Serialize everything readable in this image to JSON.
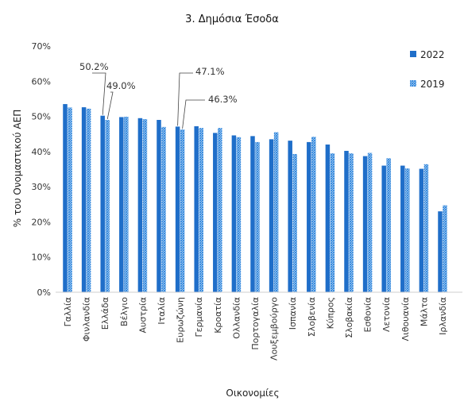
{
  "chart_data": {
    "type": "bar",
    "title": "3. Δημόσια Έσοδα",
    "xlabel": "Οικονομίες",
    "ylabel": "% του Ονομαστικού ΑΕΠ",
    "ylim": [
      0,
      70
    ],
    "yticks": [
      "0%",
      "10%",
      "20%",
      "30%",
      "40%",
      "50%",
      "60%",
      "70%"
    ],
    "grid": false,
    "legend_position": "top-right",
    "categories": [
      "Γαλλία",
      "Φινλανδία",
      "Ελλάδα",
      "Βέλγιο",
      "Αυστρία",
      "Ιταλία",
      "Ευρωζώνη",
      "Γερμανία",
      "Κροατία",
      "Ολλανδία",
      "Πορτογαλία",
      "Λουξεμβούργο",
      "Ισπανία",
      "Σλοβενία",
      "Κύπρος",
      "Σλοβακία",
      "Εσθονία",
      "Λετονία",
      "Λιθουανία",
      "Μάλτα",
      "Ιρλανδία"
    ],
    "series": [
      {
        "name": "2022",
        "color": "#1f6ec9",
        "pattern": "solid",
        "values": [
          53.5,
          52.6,
          50.2,
          49.8,
          49.5,
          49.0,
          47.1,
          47.2,
          45.3,
          44.6,
          44.4,
          43.5,
          43.1,
          42.7,
          42.0,
          40.2,
          38.7,
          36.0,
          36.0,
          35.1,
          23.0
        ]
      },
      {
        "name": "2019",
        "color": "#2f86dd",
        "pattern": "hatched",
        "values": [
          52.5,
          52.2,
          49.0,
          49.9,
          49.2,
          47.0,
          46.3,
          46.7,
          46.7,
          44.1,
          42.7,
          45.5,
          39.3,
          44.2,
          39.5,
          39.5,
          39.6,
          38.1,
          35.2,
          36.4,
          24.7
        ]
      }
    ],
    "annotations": [
      {
        "text": "50.2%",
        "category": "Ελλάδα",
        "series": "2022",
        "value": 50.2
      },
      {
        "text": "49.0%",
        "category": "Ελλάδα",
        "series": "2019",
        "value": 49.0
      },
      {
        "text": "47.1%",
        "category": "Ευρωζώνη",
        "series": "2022",
        "value": 47.1
      },
      {
        "text": "46.3%",
        "category": "Ευρωζώνη",
        "series": "2019",
        "value": 46.3
      }
    ]
  }
}
